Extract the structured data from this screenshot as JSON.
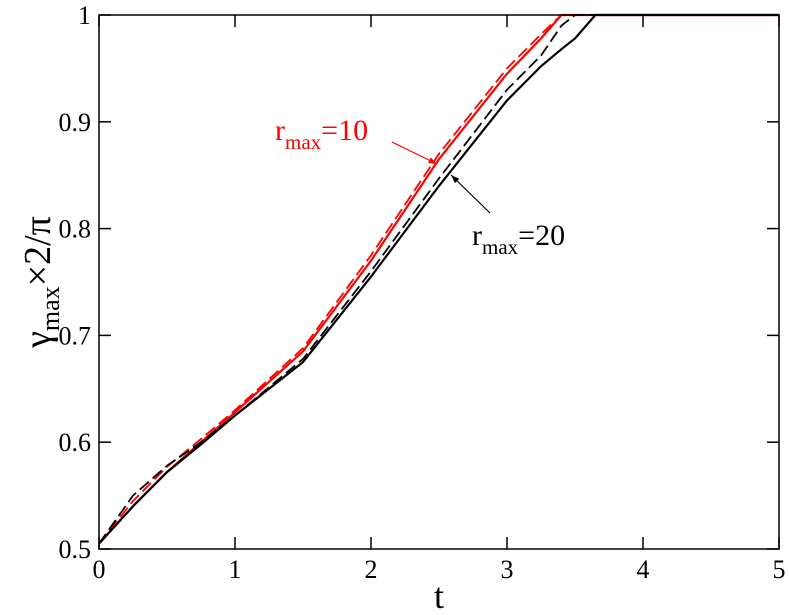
{
  "chart_data": {
    "type": "line",
    "xlabel": "t",
    "ylabel": {
      "symbol": "γ",
      "sub": "max",
      "rest": "×2/π"
    },
    "x": [
      0,
      0.25,
      0.5,
      0.75,
      1,
      1.5,
      2,
      2.5,
      3,
      3.25,
      3.4,
      3.5,
      3.65,
      4,
      5
    ],
    "series": [
      {
        "color": "#ff0000",
        "dashed": false,
        "values": [
          0.505,
          0.54,
          0.572,
          0.6,
          0.628,
          0.685,
          0.77,
          0.865,
          0.945,
          0.978,
          1.0,
          1,
          1,
          1,
          1
        ]
      },
      {
        "color": "#ff0000",
        "dashed": true,
        "values": [
          0.505,
          0.545,
          0.577,
          0.603,
          0.63,
          0.688,
          0.775,
          0.87,
          0.95,
          0.982,
          1.0,
          1,
          1,
          1,
          1
        ]
      },
      {
        "color": "#000000",
        "dashed": false,
        "values": [
          0.505,
          0.54,
          0.572,
          0.598,
          0.625,
          0.675,
          0.755,
          0.84,
          0.92,
          0.952,
          0.968,
          0.978,
          1.0,
          1,
          1
        ]
      },
      {
        "color": "#000000",
        "dashed": true,
        "values": [
          0.505,
          0.55,
          0.578,
          0.6,
          0.625,
          0.678,
          0.76,
          0.847,
          0.93,
          0.962,
          0.99,
          1.0,
          1,
          1,
          1
        ]
      }
    ],
    "annotations": [
      {
        "text": "r",
        "sub": "max",
        "rest": "=10",
        "color": "#ff0000"
      },
      {
        "text": "r",
        "sub": "max",
        "rest": "=20",
        "color": "#000000"
      }
    ],
    "xlim": [
      0,
      5
    ],
    "ylim": [
      0.5,
      1
    ],
    "xticks": [
      0,
      1,
      2,
      3,
      4,
      5
    ],
    "yticks": [
      0.5,
      0.6,
      0.7,
      0.8,
      0.9,
      1
    ]
  }
}
